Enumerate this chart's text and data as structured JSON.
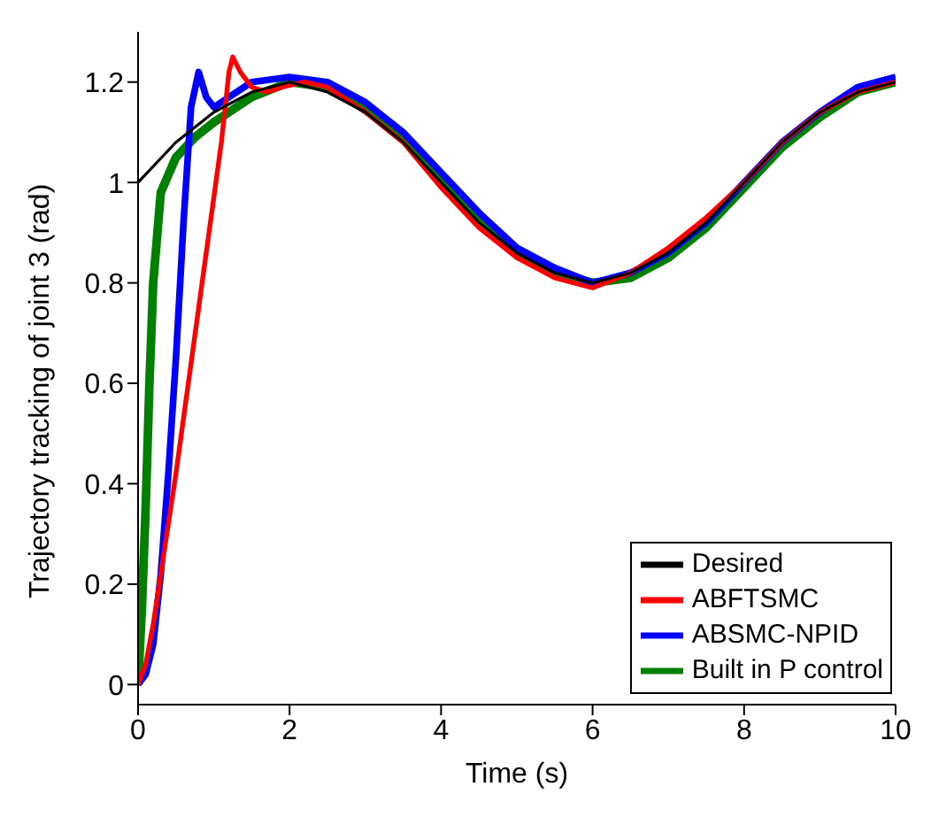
{
  "chart_data": {
    "type": "line",
    "xlabel": "Time (s)",
    "ylabel": "Trajectory tracking of joint 3 (rad)",
    "xlim": [
      0,
      10
    ],
    "xticks": [
      0,
      2,
      4,
      6,
      8,
      10
    ],
    "ylim": [
      -0.04,
      1.3
    ],
    "yticks": [
      0,
      0.2,
      0.4,
      0.6,
      0.8,
      1,
      1.2
    ],
    "grid": false,
    "legend": "bottom right",
    "line_style": "solid",
    "marker": "none",
    "series": [
      {
        "name": "Desired",
        "color": "#000000",
        "x": [
          0,
          0.5,
          1,
          1.5,
          2,
          2.5,
          3,
          3.5,
          4,
          4.5,
          5,
          5.5,
          6,
          6.5,
          7,
          7.5,
          8,
          8.5,
          9,
          9.5,
          10
        ],
        "values": [
          1,
          1.08,
          1.14,
          1.18,
          1.2,
          1.18,
          1.14,
          1.08,
          1,
          0.92,
          0.86,
          0.82,
          0.8,
          0.82,
          0.86,
          0.92,
          1,
          1.08,
          1.14,
          1.18,
          1.2
        ]
      },
      {
        "name": "ABFTSMC",
        "color": "#ff0000",
        "x": [
          0,
          0.1,
          0.2,
          0.5,
          0.8,
          1.1,
          1.2,
          1.25,
          1.35,
          1.5,
          1.7,
          1.9,
          2.2,
          2.5,
          3,
          3.5,
          4,
          4.5,
          5,
          5.5,
          6,
          6.5,
          7,
          7.5,
          8,
          8.5,
          9,
          9.5,
          10
        ],
        "values": [
          0,
          0.04,
          0.12,
          0.42,
          0.75,
          1.08,
          1.22,
          1.25,
          1.22,
          1.19,
          1.18,
          1.19,
          1.2,
          1.19,
          1.14,
          1.08,
          0.99,
          0.91,
          0.85,
          0.81,
          0.79,
          0.82,
          0.87,
          0.93,
          1,
          1.08,
          1.14,
          1.18,
          1.2
        ]
      },
      {
        "name": "ABSMC-NPID",
        "color": "#0000ff",
        "x": [
          0,
          0.1,
          0.2,
          0.3,
          0.4,
          0.5,
          0.6,
          0.7,
          0.8,
          0.9,
          1,
          1.2,
          1.5,
          2,
          2.5,
          3,
          3.5,
          4,
          4.5,
          5,
          5.5,
          6,
          6.5,
          7,
          7.5,
          8,
          8.5,
          9,
          9.5,
          10
        ],
        "values": [
          0,
          0.02,
          0.08,
          0.22,
          0.42,
          0.65,
          0.92,
          1.15,
          1.22,
          1.17,
          1.15,
          1.17,
          1.2,
          1.21,
          1.2,
          1.16,
          1.1,
          1.02,
          0.94,
          0.87,
          0.83,
          0.8,
          0.82,
          0.86,
          0.92,
          1,
          1.08,
          1.14,
          1.19,
          1.21
        ]
      },
      {
        "name": "Built in P control",
        "color": "#008000",
        "x": [
          0,
          0.05,
          0.1,
          0.15,
          0.2,
          0.3,
          0.5,
          0.75,
          1,
          1.5,
          2,
          2.5,
          3,
          3.5,
          4,
          4.5,
          5,
          5.5,
          6,
          6.5,
          7,
          7.5,
          8,
          8.5,
          9,
          9.5,
          10
        ],
        "values": [
          0,
          0.15,
          0.35,
          0.6,
          0.8,
          0.98,
          1.05,
          1.09,
          1.12,
          1.17,
          1.2,
          1.19,
          1.15,
          1.09,
          1.01,
          0.93,
          0.86,
          0.82,
          0.8,
          0.81,
          0.85,
          0.91,
          0.99,
          1.07,
          1.13,
          1.18,
          1.2
        ]
      }
    ]
  }
}
